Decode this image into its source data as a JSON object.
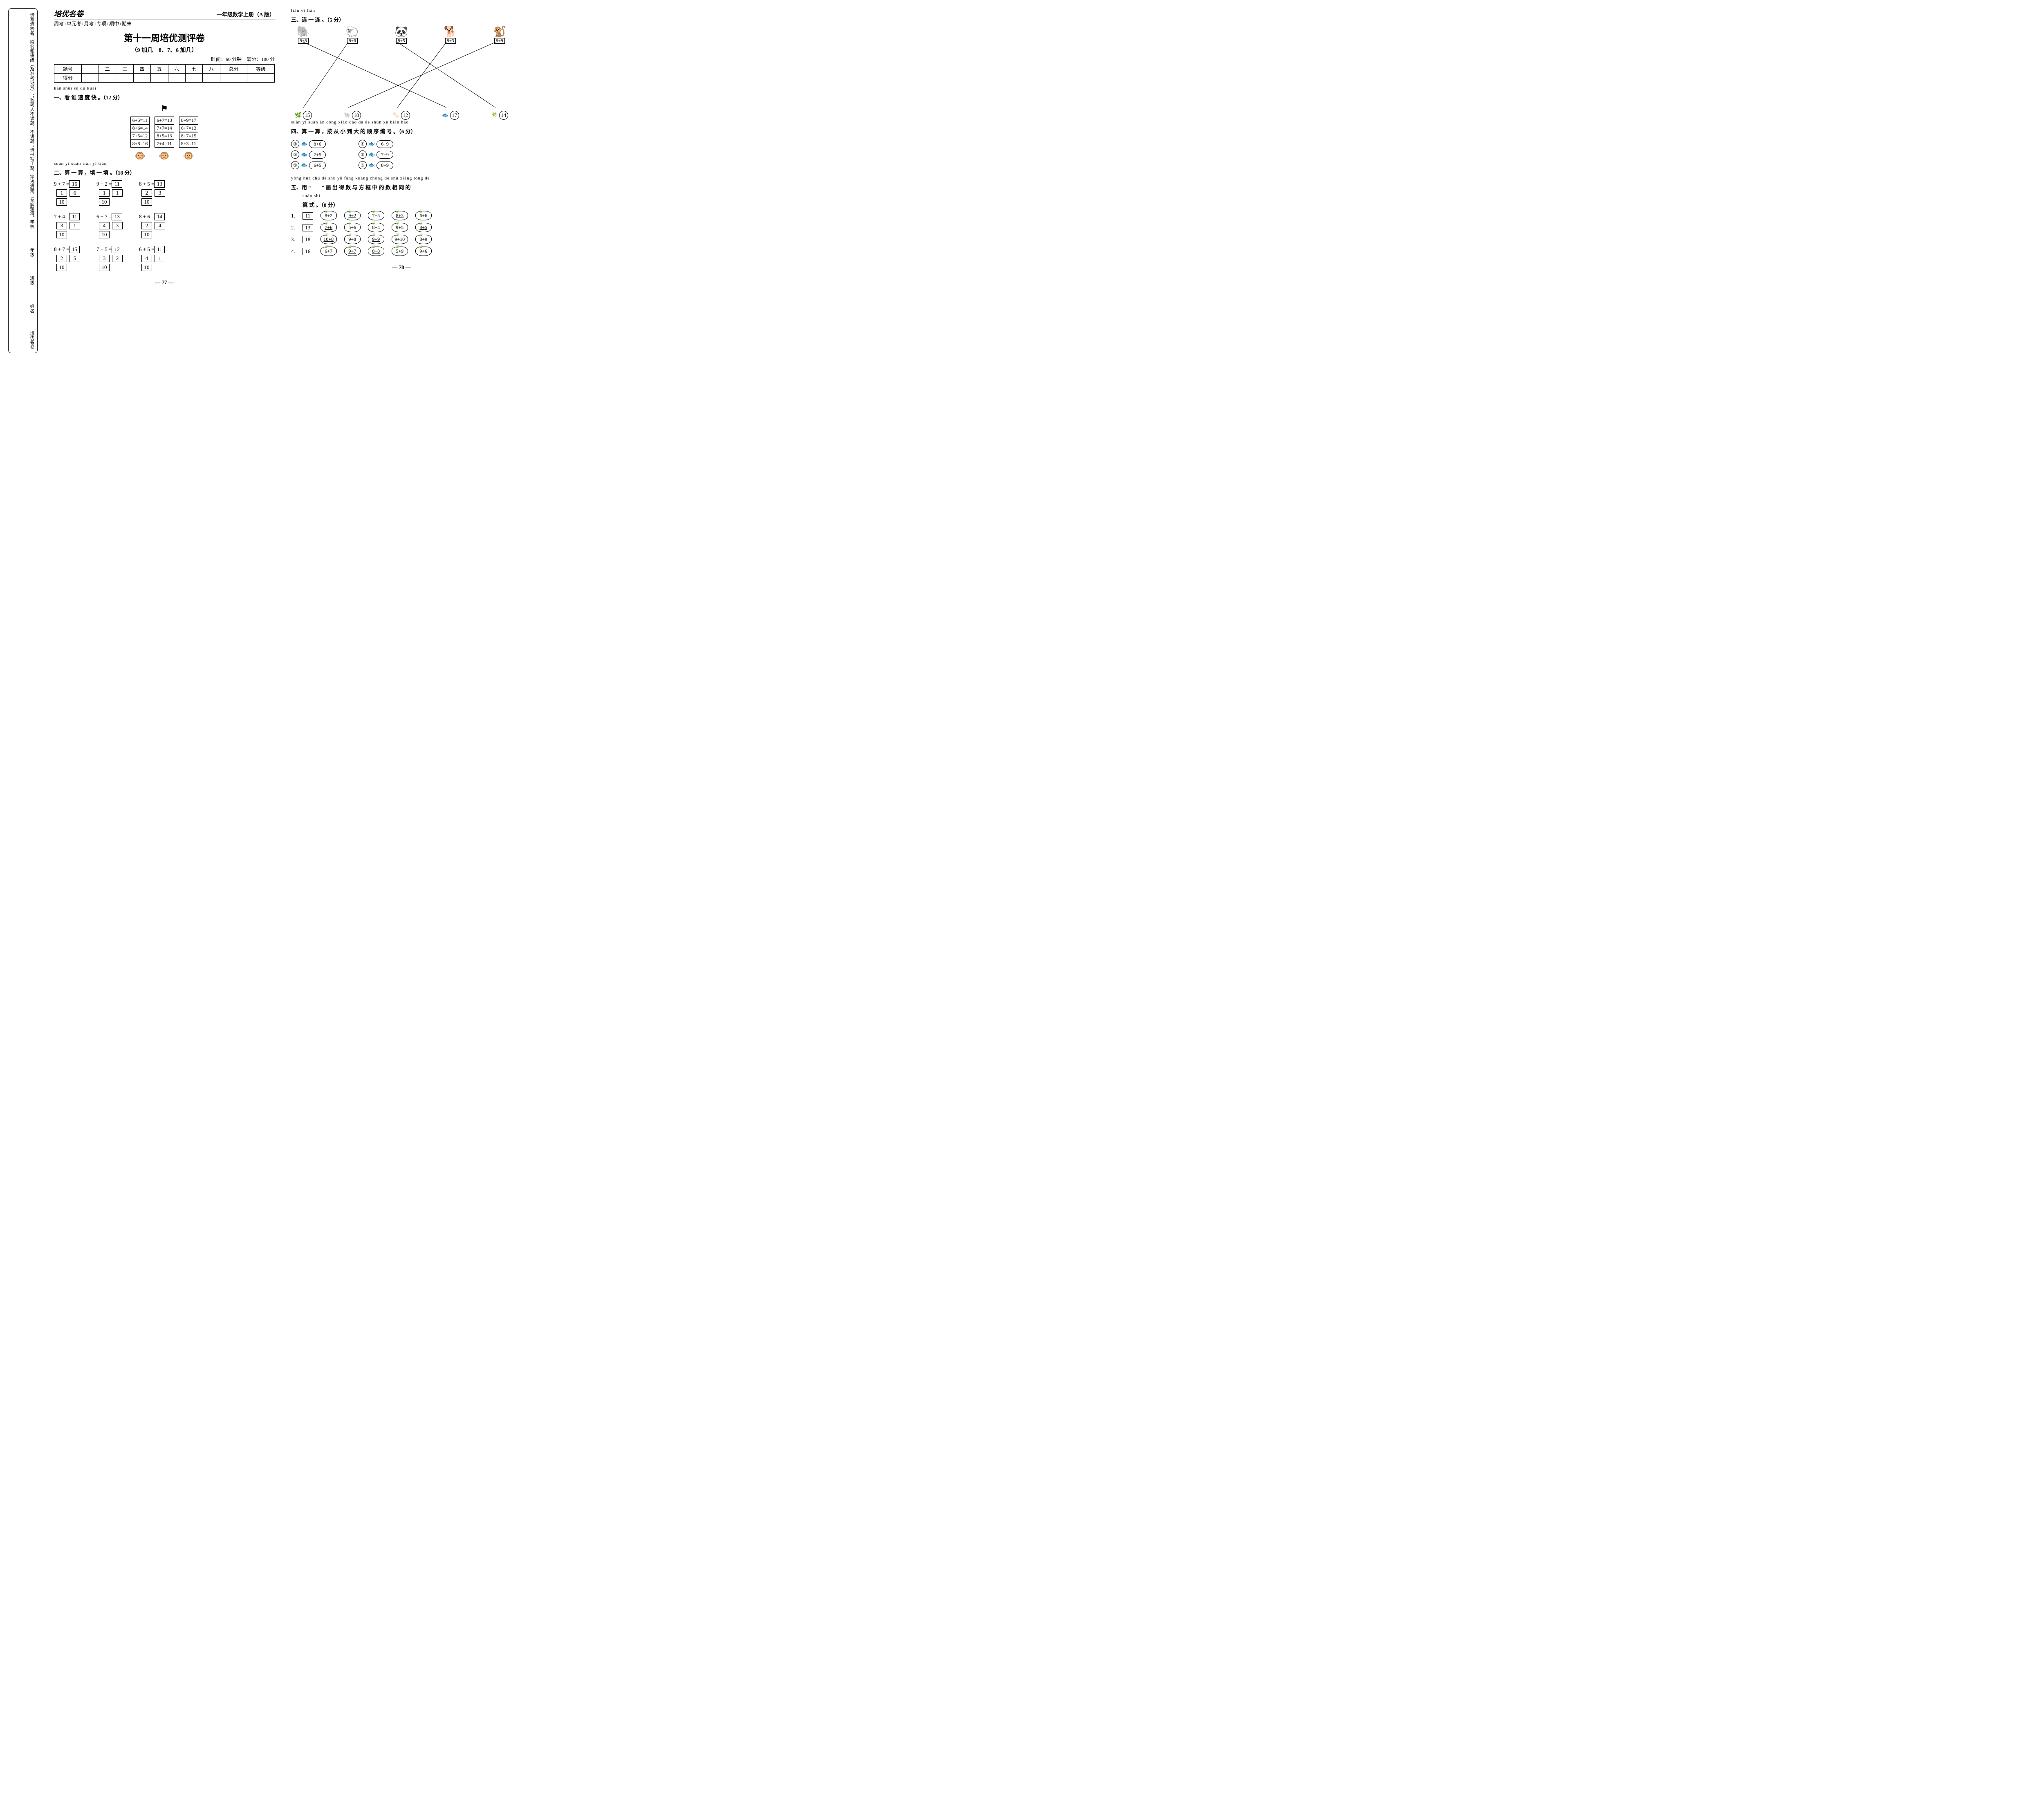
{
  "sidebar": {
    "logo": "培优名卷",
    "line1": "周考+单元考+月考+专项+期中+期末",
    "fields": "学校________ 年级________ 班级________ 姓名________",
    "notes": "请写清校名、姓名和班级（及准考证号）；监考人不读题、不讲题；请书写工整、字迹清楚、卷面整洁。"
  },
  "header": {
    "logo": "培优名卷",
    "grade": "一年级数学上册（A 版）",
    "sub": "周考+单元考+月考+专项+期中+期末"
  },
  "title": "第十一周培优测评卷",
  "subtitle": "（9 加几　8、7、6 加几）",
  "time": "时间：60 分钟　满分：100 分",
  "scoreHead": [
    "题号",
    "一",
    "二",
    "三",
    "四",
    "五",
    "六",
    "七",
    "八",
    "总分",
    "等级"
  ],
  "scoreRow": "得分",
  "s1": {
    "pinyin": "kàn shuí sù dù kuài",
    "title": "一、看 谁 速 度 快 。（12 分）",
    "colA": [
      "6+5=11",
      "8+6=14",
      "7+5=12",
      "8+8=16"
    ],
    "colB": [
      "6+7=13",
      "7+7=14",
      "8+5=13",
      "7+4=11"
    ],
    "colC": [
      "8+9=17",
      "6+7=13",
      "8+7=15",
      "8+3=11"
    ]
  },
  "s2": {
    "pinyin": "suàn yī suàn   tián yī tián",
    "title": "二、算 一 算 ，填 一 填 。（18 分）",
    "items": [
      {
        "eq": "9 + 7 =",
        "ans": "16",
        "a": "1",
        "b": "6",
        "ten": "10"
      },
      {
        "eq": "9 + 2 =",
        "ans": "11",
        "a": "1",
        "b": "1",
        "ten": "10"
      },
      {
        "eq": "8 + 5 =",
        "ans": "13",
        "a": "2",
        "b": "3",
        "ten": "10"
      },
      {
        "eq": "7 + 4 =",
        "ans": "11",
        "a": "3",
        "b": "1",
        "ten": "10"
      },
      {
        "eq": "6 + 7 =",
        "ans": "13",
        "a": "4",
        "b": "3",
        "ten": "10"
      },
      {
        "eq": "8 + 6 =",
        "ans": "14",
        "a": "2",
        "b": "4",
        "ten": "10"
      },
      {
        "eq": "8 + 7 =",
        "ans": "15",
        "a": "2",
        "b": "5",
        "ten": "10"
      },
      {
        "eq": "7 + 5 =",
        "ans": "12",
        "a": "3",
        "b": "2",
        "ten": "10"
      },
      {
        "eq": "6 + 5 =",
        "ans": "11",
        "a": "4",
        "b": "1",
        "ten": "10"
      }
    ]
  },
  "s3": {
    "pinyin": "lián yī lián",
    "title": "三、连 一 连 。（5 分）",
    "top": [
      {
        "icon": "🐘",
        "expr": "9+8"
      },
      {
        "icon": "🐑",
        "expr": "9+6"
      },
      {
        "icon": "🐼",
        "expr": "9+5"
      },
      {
        "icon": "🐕",
        "expr": "9+3"
      },
      {
        "icon": "🐒",
        "expr": "9+9"
      }
    ],
    "bot": [
      {
        "icon": "🌿",
        "val": "15"
      },
      {
        "icon": "🐚",
        "val": "18"
      },
      {
        "icon": "🦴",
        "val": "12"
      },
      {
        "icon": "🐟",
        "val": "17"
      },
      {
        "icon": "🎋",
        "val": "14"
      }
    ],
    "lines": [
      [
        0,
        3
      ],
      [
        1,
        0
      ],
      [
        2,
        4
      ],
      [
        3,
        2
      ],
      [
        4,
        1
      ]
    ]
  },
  "s4": {
    "pinyin": "suàn yī suàn   àn cóng xiǎo dào dà de shùn xù biān hào",
    "title": "四、算 一 算 ，按 从 小 到 大 的 顺 序 编 号 。（6 分）",
    "left": [
      {
        "n": "③",
        "e": "8+6"
      },
      {
        "n": "②",
        "e": "7+5"
      },
      {
        "n": "①",
        "e": "6+5"
      }
    ],
    "right": [
      {
        "n": "④",
        "e": "6+9"
      },
      {
        "n": "⑤",
        "e": "7+9"
      },
      {
        "n": "⑥",
        "e": "8+9"
      }
    ]
  },
  "s5": {
    "pinyin": "yòng          huà chū dé shù yǔ fāng kuàng zhōng de shù xiāng tóng de",
    "title1": "五、用 “____” 画 出 得 数 与 方 框 中 的 数 相 同 的",
    "pinyin2": "suàn shì",
    "title2": "算 式 。（8 分）",
    "rows": [
      {
        "n": "1.",
        "box": "11",
        "apples": [
          "8+2",
          "9+2",
          "7+5",
          "8+3",
          "6+6"
        ],
        "u": [
          1,
          3
        ]
      },
      {
        "n": "2.",
        "box": "13",
        "apples": [
          "7+6",
          "5+6",
          "8+4",
          "9+5",
          "8+5"
        ],
        "u": [
          0,
          4
        ]
      },
      {
        "n": "3.",
        "box": "18",
        "apples": [
          "10+8",
          "9+8",
          "9+9",
          "9+10",
          "8+9"
        ],
        "u": [
          0,
          2
        ]
      },
      {
        "n": "4.",
        "box": "16",
        "apples": [
          "6+7",
          "9+7",
          "8+8",
          "5+9",
          "9+6"
        ],
        "u": [
          1,
          2
        ]
      }
    ]
  },
  "pg": {
    "left": "— 77 —",
    "right": "— 78 —"
  }
}
